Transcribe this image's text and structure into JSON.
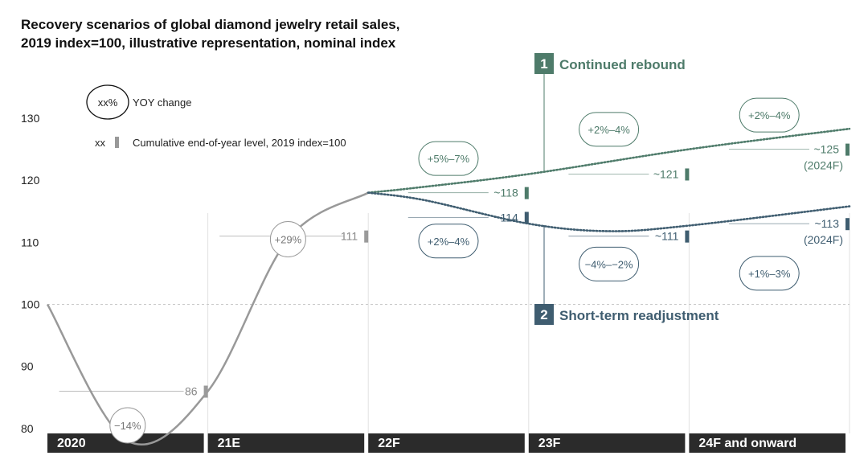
{
  "colors": {
    "rebound": "#4e7b6a",
    "readjust": "#3f5d70",
    "history": "#999999",
    "axis_bar": "#2b2b2b",
    "text": "#222222"
  },
  "chart_data": {
    "type": "line",
    "title_lines": [
      "Recovery scenarios of global diamond jewelry retail sales,",
      "2019 index=100, illustrative representation, nominal index"
    ],
    "y_ticks": [
      80,
      90,
      100,
      110,
      120,
      130
    ],
    "ylim": [
      77,
      137
    ],
    "periods": [
      "2020",
      "21E",
      "22F",
      "23F",
      "24F and onward"
    ],
    "baseline": 100,
    "legend": {
      "yoy_symbol": "xx%",
      "yoy_label": "YOY change",
      "level_symbol": "xx",
      "level_label": "Cumulative end-of-year level, 2019 index=100"
    },
    "history": {
      "points": [
        [
          0,
          100
        ],
        [
          0.5,
          78
        ],
        [
          1.0,
          86
        ],
        [
          1.5,
          110.5
        ],
        [
          2.0,
          118
        ]
      ],
      "levels": [
        {
          "x": 1,
          "value": 86,
          "label": "86"
        },
        {
          "x": 2,
          "value": 111,
          "label": "111"
        }
      ],
      "yoy": [
        {
          "x": 0.5,
          "y": 80.5,
          "label": "−14%"
        },
        {
          "x": 1.5,
          "y": 110.5,
          "label": "+29%"
        }
      ]
    },
    "scenarios": [
      {
        "id": "rebound",
        "number": "1",
        "name": "Continued rebound",
        "points": [
          [
            2,
            118
          ],
          [
            2.3,
            118.8
          ],
          [
            3,
            121
          ],
          [
            4,
            125
          ],
          [
            5,
            128.3
          ]
        ],
        "levels": [
          {
            "x": 3,
            "value": 118,
            "label": "~118"
          },
          {
            "x": 4,
            "value": 121,
            "label": "~121"
          },
          {
            "x": 5,
            "value": 125,
            "label": "~125"
          }
        ],
        "end_note": "(2024F)",
        "yoy": [
          {
            "x": 2.5,
            "y": 123.5,
            "label": "+5%–7%"
          },
          {
            "x": 3.5,
            "y": 128.2,
            "label": "+2%–4%"
          },
          {
            "x": 4.5,
            "y": 130.5,
            "label": "+2%–4%"
          }
        ]
      },
      {
        "id": "readjust",
        "number": "2",
        "name": "Short-term readjustment",
        "points": [
          [
            2,
            118
          ],
          [
            2.35,
            116.8
          ],
          [
            3,
            113
          ],
          [
            3.5,
            111.8
          ],
          [
            4,
            112.7
          ],
          [
            5,
            115.8
          ]
        ],
        "levels": [
          {
            "x": 3,
            "value": 114,
            "label": "~114"
          },
          {
            "x": 4,
            "value": 111,
            "label": "~111"
          },
          {
            "x": 5,
            "value": 113,
            "label": "~113"
          }
        ],
        "end_note": "(2024F)",
        "yoy": [
          {
            "x": 2.5,
            "y": 110.2,
            "label": "+2%–4%"
          },
          {
            "x": 3.5,
            "y": 106.5,
            "label": "−4%–−2%"
          },
          {
            "x": 4.5,
            "y": 105,
            "label": "+1%–3%"
          }
        ]
      }
    ]
  }
}
